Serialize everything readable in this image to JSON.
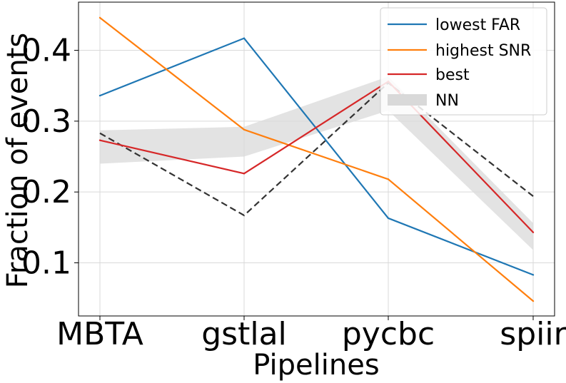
{
  "chart_data": {
    "type": "line",
    "title": "",
    "xlabel": "Pipelines",
    "ylabel": "Fraction of events",
    "categories": [
      "MBTA",
      "gstlal",
      "pycbc",
      "spiir"
    ],
    "ylim": [
      0.025,
      0.468
    ],
    "yticks": [
      0.1,
      0.2,
      0.3,
      0.4
    ],
    "ytick_labels": [
      "0.1",
      "0.2",
      "0.3",
      "0.4"
    ],
    "grid": true,
    "legend_position": "top-right",
    "series": [
      {
        "name": "lowest FAR",
        "color": "#1f77b4",
        "values": [
          0.336,
          0.417,
          0.163,
          0.083
        ]
      },
      {
        "name": "highest SNR",
        "color": "#ff7f0e",
        "values": [
          0.446,
          0.288,
          0.218,
          0.046
        ]
      },
      {
        "name": "best",
        "color": "#d62728",
        "values": [
          0.273,
          0.226,
          0.356,
          0.143
        ]
      }
    ],
    "band": {
      "name": "NN",
      "color": "#d9d9d9",
      "lower": [
        0.24,
        0.25,
        0.315,
        0.118
      ],
      "upper": [
        0.287,
        0.292,
        0.363,
        0.156
      ]
    },
    "reference_line": {
      "color": "#333333",
      "style": "dashed",
      "values": [
        0.283,
        0.167,
        0.354,
        0.194
      ]
    }
  }
}
